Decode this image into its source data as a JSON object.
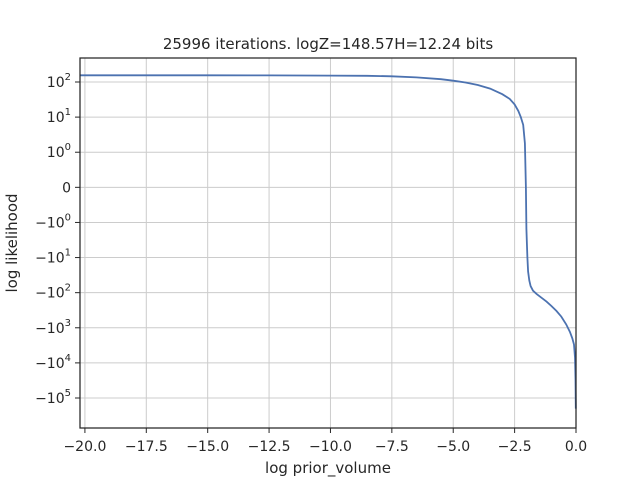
{
  "chart_data": {
    "type": "line",
    "title": "25996 iterations. logZ=148.57H=12.24 bits",
    "xlabel": "log prior_volume",
    "ylabel": "log likelihood",
    "yscale": "symlog",
    "xlim": [
      -20.2,
      0.0
    ],
    "x_ticks": [
      {
        "value": -20.0,
        "label": "−20.0"
      },
      {
        "value": -17.5,
        "label": "−17.5"
      },
      {
        "value": -15.0,
        "label": "−15.0"
      },
      {
        "value": -12.5,
        "label": "−12.5"
      },
      {
        "value": -10.0,
        "label": "−10.0"
      },
      {
        "value": -7.5,
        "label": "−7.5"
      },
      {
        "value": -5.0,
        "label": "−5.0"
      },
      {
        "value": -2.5,
        "label": "−2.5"
      },
      {
        "value": 0.0,
        "label": "0.0"
      }
    ],
    "y_ticks": [
      {
        "value": 100,
        "base": "10",
        "exp": "2",
        "sign": ""
      },
      {
        "value": 10,
        "base": "10",
        "exp": "1",
        "sign": ""
      },
      {
        "value": 1,
        "base": "10",
        "exp": "0",
        "sign": ""
      },
      {
        "value": 0,
        "base": "0",
        "exp": "",
        "sign": ""
      },
      {
        "value": -1,
        "base": "10",
        "exp": "0",
        "sign": "−"
      },
      {
        "value": -10,
        "base": "10",
        "exp": "1",
        "sign": "−"
      },
      {
        "value": -100,
        "base": "10",
        "exp": "2",
        "sign": "−"
      },
      {
        "value": -1000,
        "base": "10",
        "exp": "3",
        "sign": "−"
      },
      {
        "value": -10000,
        "base": "10",
        "exp": "4",
        "sign": "−"
      },
      {
        "value": -100000,
        "base": "10",
        "exp": "5",
        "sign": "−"
      }
    ],
    "grid": true,
    "series": [
      {
        "color": "#4c72b0",
        "x": [
          -20.2,
          -17.5,
          -15.0,
          -12.5,
          -10.0,
          -8.5,
          -7.5,
          -6.5,
          -5.5,
          -5.0,
          -4.5,
          -4.0,
          -3.5,
          -3.0,
          -2.7,
          -2.5,
          -2.35,
          -2.25,
          -2.15,
          -2.08,
          -2.04,
          -2.02,
          -2.0,
          -1.98,
          -1.95,
          -1.9,
          -1.85,
          -1.75,
          -1.6,
          -1.4,
          -1.2,
          -1.0,
          -0.8,
          -0.6,
          -0.4,
          -0.25,
          -0.15,
          -0.08,
          -0.04,
          -0.02,
          -0.01
        ],
        "y": [
          155,
          155,
          155,
          154,
          152,
          150,
          145,
          135,
          120,
          109,
          97,
          82,
          65,
          45,
          33,
          23,
          15,
          10,
          6,
          1.8,
          0,
          -1.5,
          -4,
          -10,
          -25,
          -45,
          -65,
          -88,
          -110,
          -140,
          -180,
          -240,
          -330,
          -480,
          -800,
          -1300,
          -2000,
          -3000,
          -7000,
          -30000,
          -200000
        ]
      }
    ]
  }
}
